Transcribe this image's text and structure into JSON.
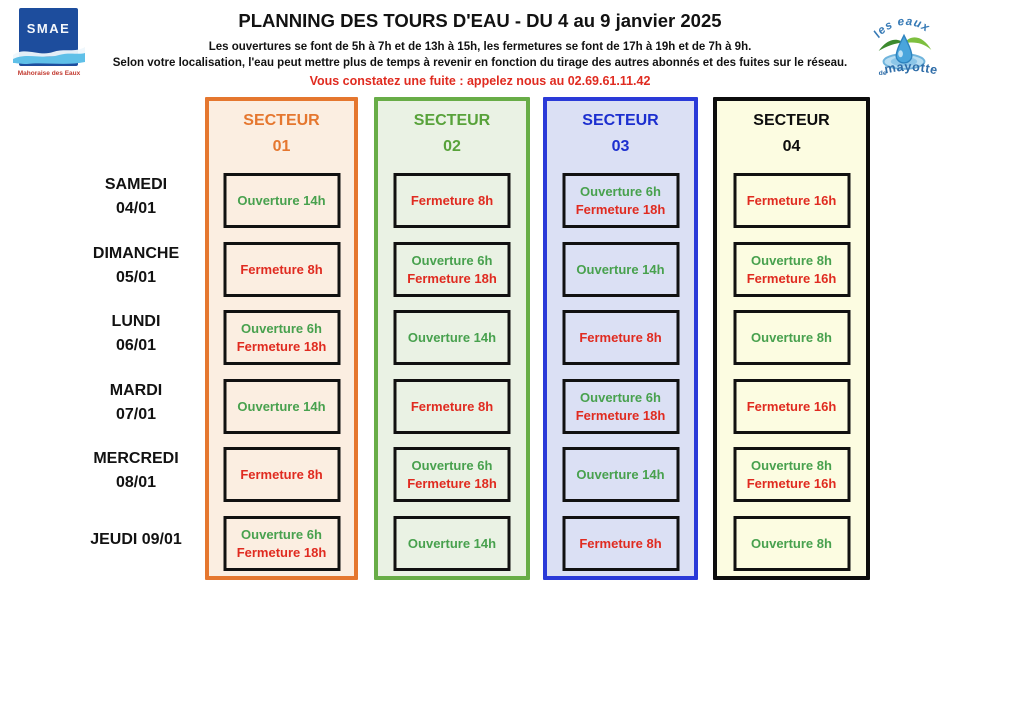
{
  "header": {
    "title": "PLANNING DES TOURS D'EAU - DU 4 au 9 janvier 2025",
    "subtitle1": "Les ouvertures se font de 5h à 7h et de 13h à 15h, les fermetures se font de 17h à 19h et de 7h à 9h.",
    "subtitle2": "Selon votre localisation, l'eau peut mettre plus de temps à revenir en fonction du tirage des autres abonnés et des fuites sur le réseau.",
    "leak_notice": "Vous constatez une fuite : appelez nous au 02.69.61.11.42"
  },
  "logos": {
    "smae": {
      "name": "SMAE",
      "caption": "Mahoraise des Eaux"
    },
    "mayotte": {
      "line1": "les eaux",
      "de": "de",
      "name": "mayotte"
    }
  },
  "colors": {
    "open": "#48a14e",
    "close": "#e02b20",
    "leak": "#e02b20",
    "title": "#121212"
  },
  "sectors": [
    {
      "label": "SECTEUR",
      "number": "01",
      "border": "#e5772f",
      "bg": "#fbeee1",
      "header_color": "#e5772f"
    },
    {
      "label": "SECTEUR",
      "number": "02",
      "border": "#68ad47",
      "bg": "#eaf2e4",
      "header_color": "#58a23a"
    },
    {
      "label": "SECTEUR",
      "number": "03",
      "border": "#2a3ad8",
      "bg": "#dbe0f4",
      "header_color": "#1c2fcf"
    },
    {
      "label": "SECTEUR",
      "number": "04",
      "border": "#0d0d0d",
      "bg": "#fcfce1",
      "header_color": "#0d0d0d"
    }
  ],
  "rows": [
    {
      "day": [
        "SAMEDI",
        "04/01"
      ],
      "cells": [
        [
          {
            "text": "Ouverture 14h",
            "kind": "open"
          }
        ],
        [
          {
            "text": "Fermeture 8h",
            "kind": "close"
          }
        ],
        [
          {
            "text": "Ouverture 6h",
            "kind": "open"
          },
          {
            "text": "Fermeture 18h",
            "kind": "close"
          }
        ],
        [
          {
            "text": "Fermeture 16h",
            "kind": "close"
          }
        ]
      ]
    },
    {
      "day": [
        "DIMANCHE",
        "05/01"
      ],
      "cells": [
        [
          {
            "text": "Fermeture 8h",
            "kind": "close"
          }
        ],
        [
          {
            "text": "Ouverture 6h",
            "kind": "open"
          },
          {
            "text": "Fermeture 18h",
            "kind": "close"
          }
        ],
        [
          {
            "text": "Ouverture 14h",
            "kind": "open"
          }
        ],
        [
          {
            "text": "Ouverture 8h",
            "kind": "open"
          },
          {
            "text": "Fermeture 16h",
            "kind": "close"
          }
        ]
      ]
    },
    {
      "day": [
        "LUNDI",
        "06/01"
      ],
      "cells": [
        [
          {
            "text": "Ouverture 6h",
            "kind": "open"
          },
          {
            "text": "Fermeture 18h",
            "kind": "close"
          }
        ],
        [
          {
            "text": "Ouverture 14h",
            "kind": "open"
          }
        ],
        [
          {
            "text": "Fermeture 8h",
            "kind": "close"
          }
        ],
        [
          {
            "text": "Ouverture 8h",
            "kind": "open"
          }
        ]
      ]
    },
    {
      "day": [
        "MARDI",
        "07/01"
      ],
      "cells": [
        [
          {
            "text": "Ouverture 14h",
            "kind": "open"
          }
        ],
        [
          {
            "text": "Fermeture 8h",
            "kind": "close"
          }
        ],
        [
          {
            "text": "Ouverture 6h",
            "kind": "open"
          },
          {
            "text": "Fermeture 18h",
            "kind": "close"
          }
        ],
        [
          {
            "text": "Fermeture 16h",
            "kind": "close"
          }
        ]
      ]
    },
    {
      "day": [
        "MERCREDI",
        "08/01"
      ],
      "cells": [
        [
          {
            "text": "Fermeture 8h",
            "kind": "close"
          }
        ],
        [
          {
            "text": "Ouverture 6h",
            "kind": "open"
          },
          {
            "text": "Fermeture 18h",
            "kind": "close"
          }
        ],
        [
          {
            "text": "Ouverture 14h",
            "kind": "open"
          }
        ],
        [
          {
            "text": "Ouverture 8h",
            "kind": "open"
          },
          {
            "text": "Fermeture 16h",
            "kind": "close"
          }
        ]
      ]
    },
    {
      "day": [
        "JEUDI 09/01"
      ],
      "cells": [
        [
          {
            "text": "Ouverture 6h",
            "kind": "open"
          },
          {
            "text": "Fermeture 18h",
            "kind": "close"
          }
        ],
        [
          {
            "text": "Ouverture 14h",
            "kind": "open"
          }
        ],
        [
          {
            "text": "Fermeture 8h",
            "kind": "close"
          }
        ],
        [
          {
            "text": "Ouverture 8h",
            "kind": "open"
          }
        ]
      ]
    }
  ]
}
